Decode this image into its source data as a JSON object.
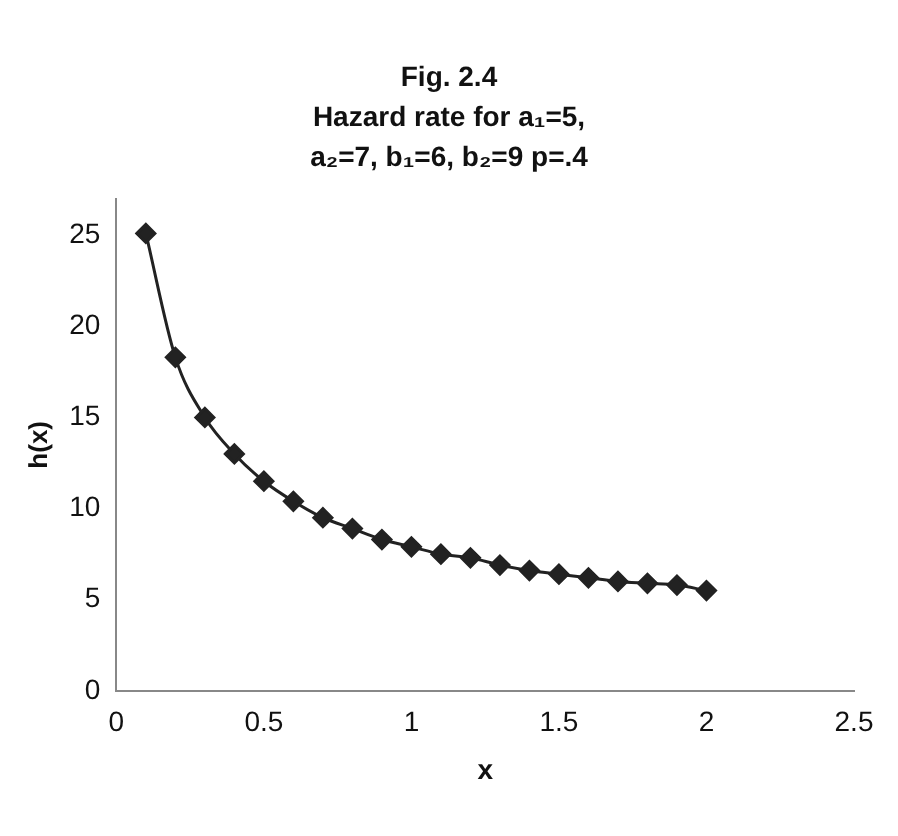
{
  "chart_data": {
    "type": "line",
    "title": "Fig. 2.4",
    "subtitle": "Hazard rate for a₁=5, a₂=7, b₁=6, b₂=9 p=.4",
    "xlabel": "x",
    "ylabel": "h(x)",
    "x": [
      0.1,
      0.2,
      0.3,
      0.4,
      0.5,
      0.6,
      0.7,
      0.8,
      0.9,
      1.0,
      1.1,
      1.2,
      1.3,
      1.4,
      1.5,
      1.6,
      1.7,
      1.8,
      1.9,
      2.0
    ],
    "series": [
      {
        "color": "#222222",
        "values": [
          25.1,
          18.3,
          15.0,
          13.0,
          11.5,
          10.4,
          9.5,
          8.9,
          8.3,
          7.9,
          7.5,
          7.3,
          6.9,
          6.6,
          6.4,
          6.2,
          6.0,
          5.9,
          5.8,
          5.5
        ]
      }
    ],
    "xlim": [
      0,
      2.5
    ],
    "xticks": [
      0,
      0.5,
      1,
      1.5,
      2,
      2.5
    ],
    "ylim": [
      0,
      27
    ],
    "yticks": [
      0,
      5,
      10,
      15,
      20,
      25
    ],
    "marker": "diamond",
    "line_style": "solid",
    "grid": false,
    "legend": false
  }
}
